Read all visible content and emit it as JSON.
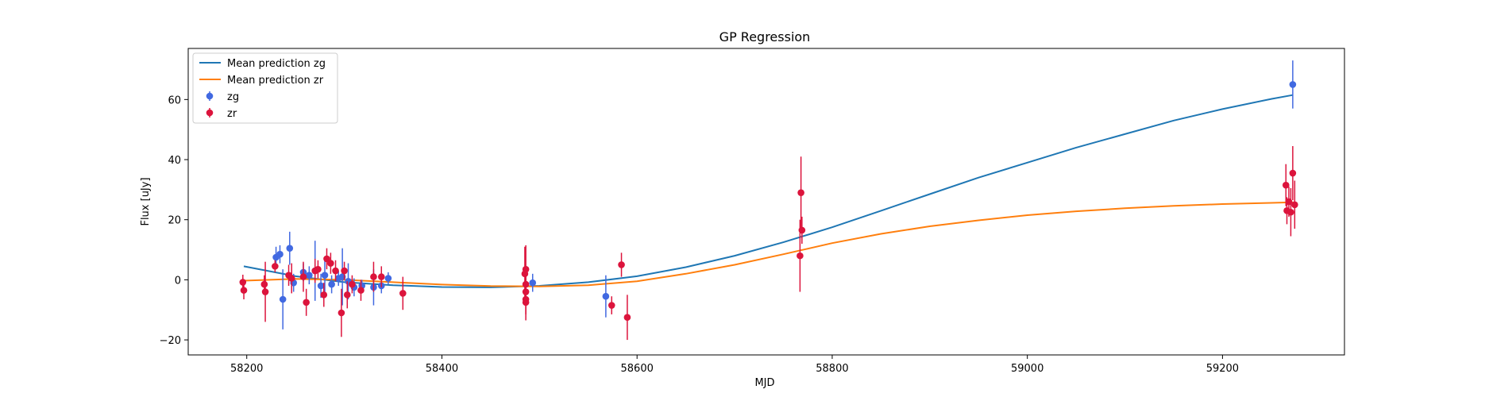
{
  "chart_data": {
    "type": "scatter",
    "title": "GP Regression",
    "xlabel": "MJD",
    "ylabel": "Flux [uJy]",
    "xlim": [
      58140,
      59325
    ],
    "ylim": [
      -25,
      77
    ],
    "xticks": [
      58200,
      58400,
      58600,
      58800,
      59000,
      59200
    ],
    "yticks": [
      -20,
      0,
      20,
      40,
      60
    ],
    "grid": false,
    "legend_position": "top-left",
    "lines": [
      {
        "name": "Mean prediction zg",
        "color": "#1f77b4",
        "x": [
          58197,
          58250,
          58300,
          58350,
          58400,
          58450,
          58500,
          58550,
          58600,
          58650,
          58700,
          58750,
          58800,
          58850,
          58900,
          58950,
          59000,
          59050,
          59100,
          59150,
          59200,
          59250,
          59272
        ],
        "y": [
          4.5,
          1.2,
          -0.8,
          -1.8,
          -2.4,
          -2.5,
          -2.0,
          -0.8,
          1.2,
          4.2,
          8.0,
          12.5,
          17.5,
          23.0,
          28.5,
          34.0,
          39.0,
          44.0,
          48.5,
          53.0,
          56.8,
          60.2,
          61.5
        ]
      },
      {
        "name": "Mean prediction zr",
        "color": "#ff7f0e",
        "x": [
          58197,
          58250,
          58300,
          58350,
          58400,
          58450,
          58500,
          58550,
          58600,
          58650,
          58700,
          58750,
          58800,
          58850,
          58900,
          58950,
          59000,
          59050,
          59100,
          59150,
          59200,
          59250,
          59272
        ],
        "y": [
          -0.3,
          0.3,
          0.0,
          -0.8,
          -1.6,
          -2.1,
          -2.2,
          -1.8,
          -0.5,
          2.0,
          5.0,
          8.5,
          12.2,
          15.3,
          17.8,
          19.8,
          21.5,
          22.8,
          23.8,
          24.6,
          25.2,
          25.6,
          25.8
        ]
      }
    ],
    "series": [
      {
        "name": "zg",
        "color": "#4169e1",
        "points": [
          {
            "x": 58230,
            "y": 7.5,
            "err": 3.5
          },
          {
            "x": 58234,
            "y": 8.5,
            "err": 3.0
          },
          {
            "x": 58237,
            "y": -6.5,
            "err": 10.0
          },
          {
            "x": 58244,
            "y": 10.5,
            "err": 5.5
          },
          {
            "x": 58248,
            "y": -1.0,
            "err": 3.0
          },
          {
            "x": 58258,
            "y": 2.5,
            "err": 3.0
          },
          {
            "x": 58264,
            "y": 1.5,
            "err": 3.0
          },
          {
            "x": 58270,
            "y": 3.0,
            "err": 10.0
          },
          {
            "x": 58276,
            "y": -2.0,
            "err": 4.0
          },
          {
            "x": 58280,
            "y": 1.5,
            "err": 6.0
          },
          {
            "x": 58287,
            "y": -1.5,
            "err": 3.0
          },
          {
            "x": 58294,
            "y": 0.5,
            "err": 2.5
          },
          {
            "x": 58298,
            "y": 1.0,
            "err": 9.5
          },
          {
            "x": 58304,
            "y": -0.5,
            "err": 6.0
          },
          {
            "x": 58310,
            "y": -2.5,
            "err": 3.0
          },
          {
            "x": 58318,
            "y": -2.0,
            "err": 2.0
          },
          {
            "x": 58330,
            "y": -2.5,
            "err": 6.0
          },
          {
            "x": 58338,
            "y": -2.0,
            "err": 2.5
          },
          {
            "x": 58345,
            "y": 0.5,
            "err": 2.0
          },
          {
            "x": 58493,
            "y": -1.0,
            "err": 3.0
          },
          {
            "x": 58568,
            "y": -5.5,
            "err": 7.0
          },
          {
            "x": 59272,
            "y": 65.0,
            "err": 8.0
          }
        ]
      },
      {
        "name": "zr",
        "color": "#dc143c",
        "points": [
          {
            "x": 58196,
            "y": -0.8,
            "err": 2.5
          },
          {
            "x": 58197,
            "y": -3.5,
            "err": 3.0
          },
          {
            "x": 58218,
            "y": -1.5,
            "err": 3.0
          },
          {
            "x": 58219,
            "y": -4.0,
            "err": 10.0
          },
          {
            "x": 58229,
            "y": 4.5,
            "err": 2.0
          },
          {
            "x": 58243,
            "y": 1.5,
            "err": 3.5
          },
          {
            "x": 58246,
            "y": 0.5,
            "err": 5.0
          },
          {
            "x": 58258,
            "y": 1.0,
            "err": 5.0
          },
          {
            "x": 58261,
            "y": -7.5,
            "err": 4.5
          },
          {
            "x": 58270,
            "y": 3.0,
            "err": 4.0
          },
          {
            "x": 58273,
            "y": 3.5,
            "err": 3.0
          },
          {
            "x": 58279,
            "y": -5.0,
            "err": 4.0
          },
          {
            "x": 58282,
            "y": 7.0,
            "err": 3.5
          },
          {
            "x": 58286,
            "y": 5.5,
            "err": 3.5
          },
          {
            "x": 58291,
            "y": 3.0,
            "err": 3.5
          },
          {
            "x": 58297,
            "y": -11.0,
            "err": 8.0
          },
          {
            "x": 58300,
            "y": 3.0,
            "err": 3.0
          },
          {
            "x": 58303,
            "y": -5.0,
            "err": 4.5
          },
          {
            "x": 58308,
            "y": -1.5,
            "err": 3.0
          },
          {
            "x": 58317,
            "y": -3.5,
            "err": 3.5
          },
          {
            "x": 58330,
            "y": 1.0,
            "err": 5.0
          },
          {
            "x": 58338,
            "y": 1.0,
            "err": 3.5
          },
          {
            "x": 58360,
            "y": -4.5,
            "err": 5.5
          },
          {
            "x": 58485,
            "y": 2.0,
            "err": 9.0
          },
          {
            "x": 58486,
            "y": 3.5,
            "err": 8.0
          },
          {
            "x": 58486,
            "y": -1.5,
            "err": 3.0
          },
          {
            "x": 58486,
            "y": -4.0,
            "err": 4.0
          },
          {
            "x": 58486,
            "y": -6.5,
            "err": 5.0
          },
          {
            "x": 58486,
            "y": -7.5,
            "err": 6.0
          },
          {
            "x": 58574,
            "y": -8.5,
            "err": 3.0
          },
          {
            "x": 58584,
            "y": 5.0,
            "err": 4.0
          },
          {
            "x": 58590,
            "y": -12.5,
            "err": 7.5
          },
          {
            "x": 58767,
            "y": 8.0,
            "err": 12.0
          },
          {
            "x": 58768,
            "y": 29.0,
            "err": 12.0
          },
          {
            "x": 58769,
            "y": 16.5,
            "err": 4.5
          },
          {
            "x": 59265,
            "y": 31.5,
            "err": 7.0
          },
          {
            "x": 59266,
            "y": 23.0,
            "err": 4.5
          },
          {
            "x": 59268,
            "y": 26.0,
            "err": 5.0
          },
          {
            "x": 59270,
            "y": 22.5,
            "err": 8.0
          },
          {
            "x": 59272,
            "y": 35.5,
            "err": 9.0
          },
          {
            "x": 59274,
            "y": 25.0,
            "err": 8.0
          }
        ]
      }
    ],
    "legend": [
      {
        "label": "Mean prediction zg",
        "kind": "line",
        "color": "#1f77b4"
      },
      {
        "label": "Mean prediction zr",
        "kind": "line",
        "color": "#ff7f0e"
      },
      {
        "label": "zg",
        "kind": "errorbar",
        "color": "#4169e1"
      },
      {
        "label": "zr",
        "kind": "errorbar",
        "color": "#dc143c"
      }
    ]
  }
}
